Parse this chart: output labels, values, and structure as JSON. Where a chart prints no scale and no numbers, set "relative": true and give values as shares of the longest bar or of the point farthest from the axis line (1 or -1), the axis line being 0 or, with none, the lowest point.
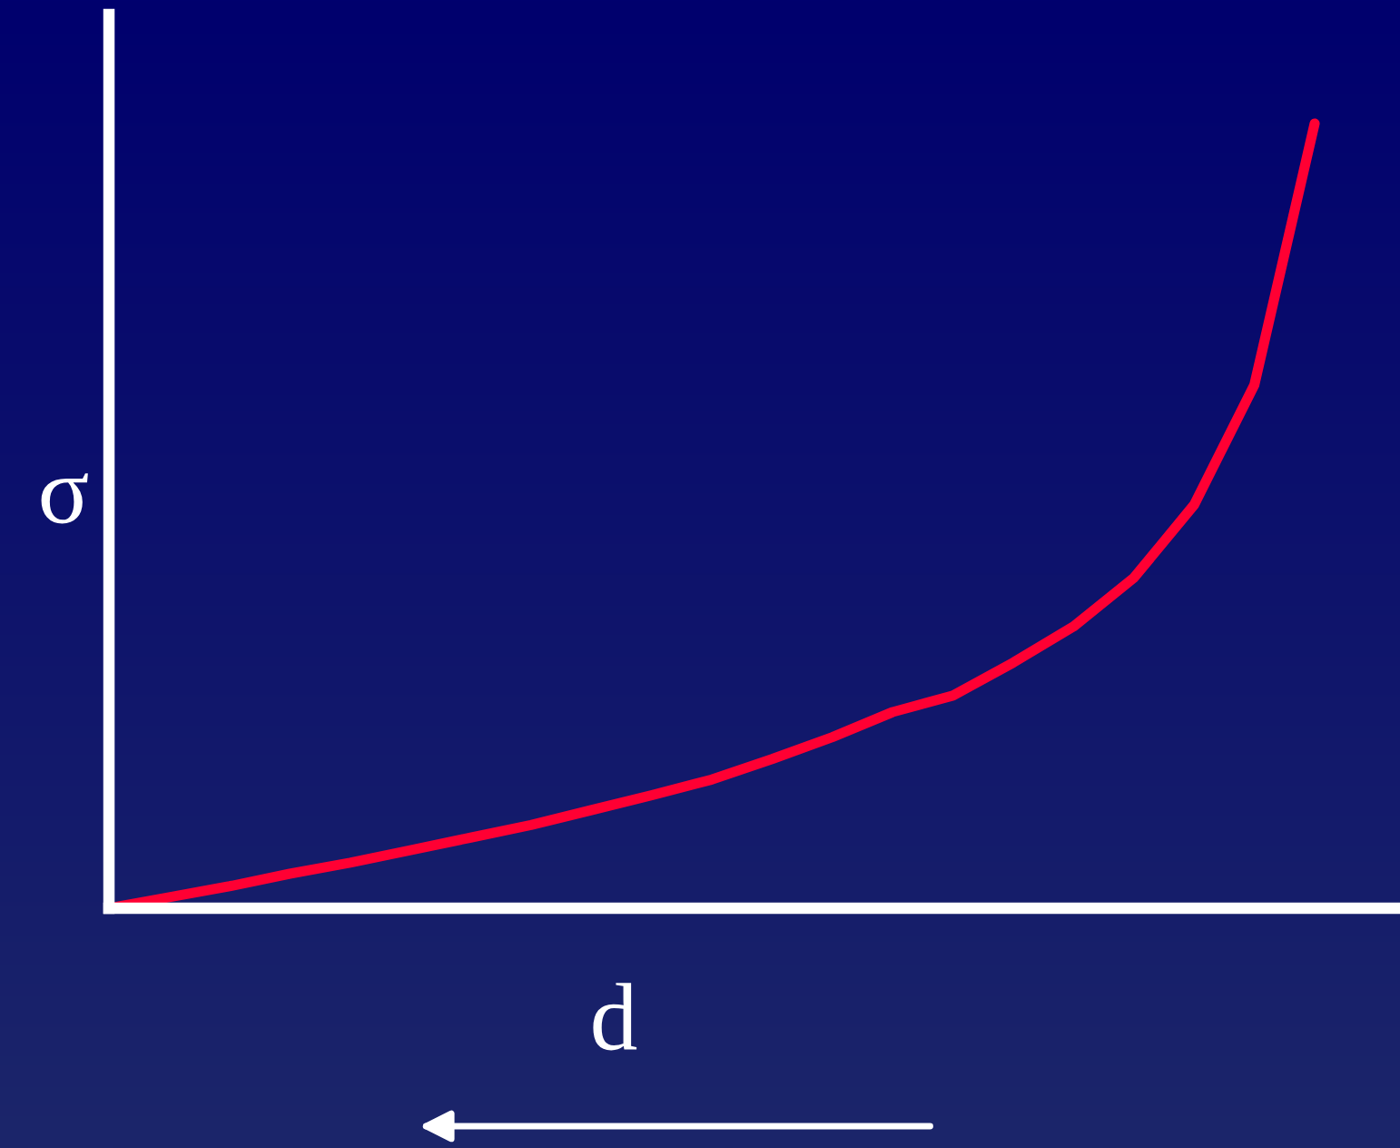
{
  "chart_data": {
    "type": "line",
    "relative": true,
    "xlabel": "d",
    "ylabel": "σ",
    "categories": [
      null,
      null,
      null,
      null,
      null,
      null,
      null,
      null,
      null,
      null,
      null,
      null,
      null,
      null,
      null,
      null,
      null,
      null,
      null,
      null,
      null
    ],
    "series": [
      {
        "color": "#ff0033",
        "values": [
          0,
          0.014,
          0.028,
          0.044,
          0.058,
          0.074,
          0.09,
          0.106,
          0.125,
          0.144,
          0.164,
          0.19,
          0.218,
          0.25,
          0.271,
          0.313,
          0.359,
          0.421,
          0.514,
          0.667,
          1
        ]
      }
    ],
    "tick_labels": false
  }
}
